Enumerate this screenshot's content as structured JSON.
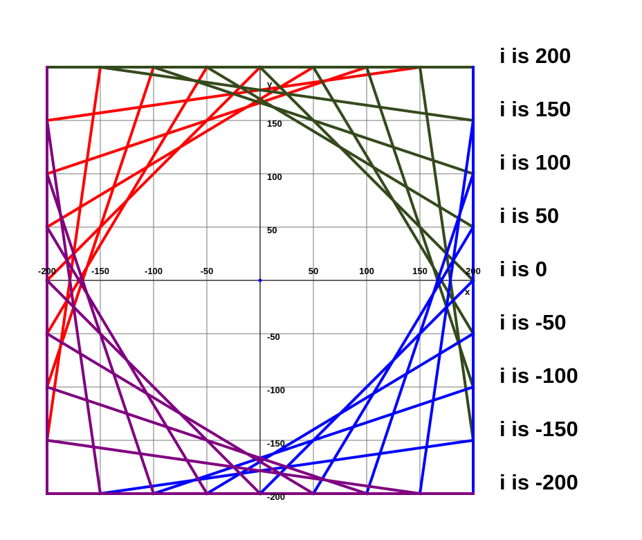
{
  "chart_data": {
    "type": "line",
    "x_label": "x",
    "y_label": "y",
    "xlim": [
      -200,
      200
    ],
    "ylim": [
      -200,
      200
    ],
    "xticks": [
      -200,
      -150,
      -100,
      -50,
      50,
      100,
      150,
      200
    ],
    "yticks": [
      -200,
      -150,
      -100,
      -50,
      50,
      100,
      150
    ],
    "grid": true,
    "series": [
      {
        "color": "#ff0000",
        "segments": [
          [
            -200,
            200,
            200,
            200
          ],
          [
            -200,
            150,
            150,
            200
          ],
          [
            -200,
            100,
            100,
            200
          ],
          [
            -200,
            50,
            50,
            200
          ],
          [
            -200,
            0,
            0,
            200
          ],
          [
            -200,
            -50,
            -50,
            200
          ],
          [
            -200,
            -100,
            -100,
            200
          ],
          [
            -200,
            -150,
            -150,
            200
          ],
          [
            -200,
            -200,
            -200,
            200
          ]
        ]
      },
      {
        "color": "#344a1c",
        "segments": [
          [
            200,
            200,
            200,
            -200
          ],
          [
            150,
            200,
            200,
            -150
          ],
          [
            100,
            200,
            200,
            -100
          ],
          [
            50,
            200,
            200,
            -50
          ],
          [
            0,
            200,
            200,
            0
          ],
          [
            -50,
            200,
            200,
            50
          ],
          [
            -100,
            200,
            200,
            100
          ],
          [
            -150,
            200,
            200,
            150
          ],
          [
            -200,
            200,
            200,
            200
          ]
        ]
      },
      {
        "color": "#0000ff",
        "segments": [
          [
            200,
            200,
            200,
            -200
          ],
          [
            200,
            150,
            150,
            -200
          ],
          [
            200,
            100,
            100,
            -200
          ],
          [
            200,
            50,
            50,
            -200
          ],
          [
            200,
            0,
            0,
            -200
          ],
          [
            200,
            -50,
            -50,
            -200
          ],
          [
            200,
            -100,
            -100,
            -200
          ],
          [
            200,
            -150,
            -150,
            -200
          ],
          [
            200,
            -200,
            -200,
            -200
          ]
        ]
      },
      {
        "color": "#800080",
        "segments": [
          [
            200,
            -200,
            -200,
            -200
          ],
          [
            150,
            -200,
            -200,
            -150
          ],
          [
            100,
            -200,
            -200,
            -100
          ],
          [
            50,
            -200,
            -200,
            -50
          ],
          [
            0,
            -200,
            -200,
            0
          ],
          [
            -50,
            -200,
            -200,
            50
          ],
          [
            -100,
            -200,
            -200,
            100
          ],
          [
            -150,
            -200,
            -200,
            150
          ],
          [
            -200,
            -200,
            -200,
            200
          ]
        ]
      }
    ],
    "annotations": [
      "i is 200",
      "i is 150",
      "i is 100",
      "i is 50",
      "i is 0",
      "i is -50",
      "i is -100",
      "i is -150",
      "i is -200"
    ]
  }
}
